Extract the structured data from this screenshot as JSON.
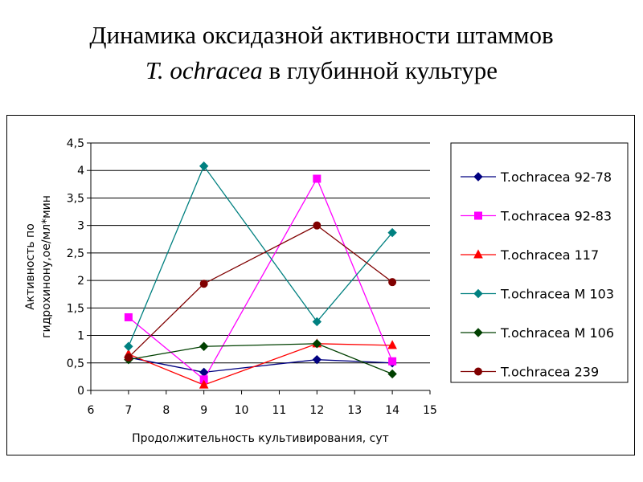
{
  "slide": {
    "title_line1": "Динамика оксидазной активности штаммов",
    "title_italic": "T. ochracea",
    "title_rest": " в глубинной культуре"
  },
  "chart_data": {
    "type": "line",
    "xlabel": "Продолжительность культивирования, сут",
    "ylabel_line1": "Активность по",
    "ylabel_line2": "гидрохинону,ое/мл*мин",
    "xlim": [
      6,
      15
    ],
    "ylim": [
      0,
      4.5
    ],
    "x_ticks": [
      "6",
      "7",
      "8",
      "9",
      "10",
      "11",
      "12",
      "13",
      "14",
      "15"
    ],
    "y_ticks": [
      "0",
      "0,5",
      "1",
      "1,5",
      "2",
      "2,5",
      "3",
      "3,5",
      "4",
      "4,5"
    ],
    "grid": "horizontal",
    "legend_position": "right",
    "x": [
      7,
      9,
      12,
      14
    ],
    "series": [
      {
        "name": "T.ochracea 92-78",
        "color": "#000080",
        "marker": "diamond",
        "values": [
          0.6,
          0.33,
          0.56,
          0.5
        ]
      },
      {
        "name": "T.ochracea 92-83",
        "color": "#ff00ff",
        "marker": "square",
        "values": [
          1.33,
          0.2,
          3.85,
          0.53
        ]
      },
      {
        "name": "T.ochracea 117",
        "color": "#ff0000",
        "marker": "triangle",
        "values": [
          0.66,
          0.1,
          0.85,
          0.82
        ]
      },
      {
        "name": "T.ochracea M 103",
        "color": "#008080",
        "marker": "diamond",
        "values": [
          0.8,
          4.08,
          1.25,
          2.87
        ]
      },
      {
        "name": "T.ochracea M 106",
        "color": "#004000",
        "marker": "diamond",
        "values": [
          0.56,
          0.8,
          0.85,
          0.3
        ]
      },
      {
        "name": "T.ochracea 239",
        "color": "#800000",
        "marker": "circle",
        "values": [
          0.6,
          1.94,
          3.0,
          1.97
        ]
      }
    ]
  }
}
